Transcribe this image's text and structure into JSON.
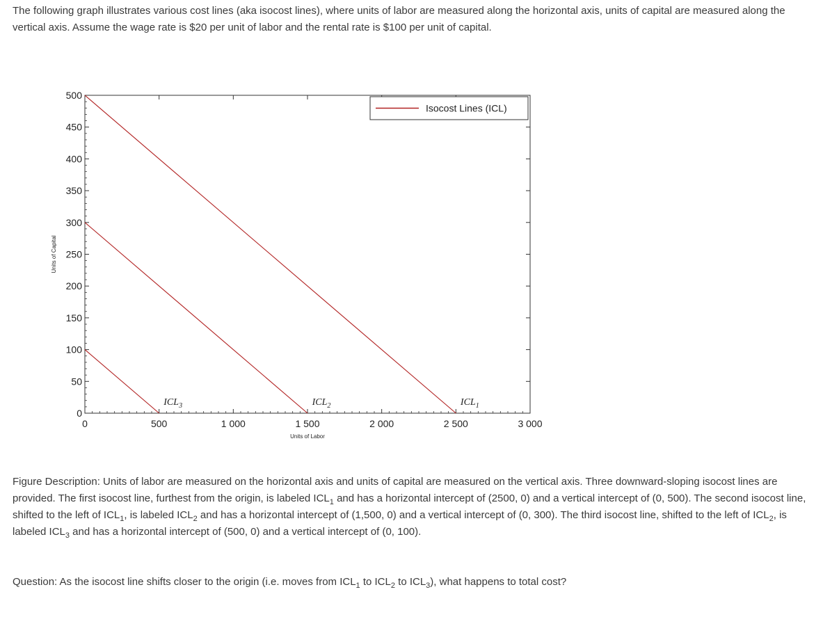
{
  "intro_text": "The following graph illustrates various cost lines (aka isocost lines), where units of labor are measured along the horizontal axis, units of capital are measured along the vertical axis.  Assume the wage rate is $20 per unit of labor and the rental rate is $100 per unit of capital.",
  "colors": {
    "line": "#b22222",
    "axis": "#333333",
    "text": "#3a3a3a"
  },
  "chart_data": {
    "type": "line",
    "xlabel": "Units of Labor",
    "ylabel": "Units of Capital",
    "xlim": [
      0,
      3000
    ],
    "ylim": [
      0,
      500
    ],
    "x_ticks": [
      0,
      500,
      1000,
      1500,
      2000,
      2500,
      3000
    ],
    "x_tick_labels": [
      "0",
      "500",
      "1 000",
      "1 500",
      "2 000",
      "2 500",
      "3 000"
    ],
    "y_ticks": [
      0,
      50,
      100,
      150,
      200,
      250,
      300,
      350,
      400,
      450,
      500
    ],
    "y_tick_labels": [
      "0",
      "50",
      "100",
      "150",
      "200",
      "250",
      "300",
      "350",
      "400",
      "450",
      "500"
    ],
    "grid": false,
    "legend": {
      "placement": "top-right",
      "entries": [
        "Isocost Lines (ICL)"
      ]
    },
    "series": [
      {
        "name": "Isocost Lines (ICL)",
        "points": [
          [
            0,
            500
          ],
          [
            2500,
            0
          ]
        ]
      },
      {
        "name": "Isocost Lines (ICL)",
        "points": [
          [
            0,
            300
          ],
          [
            1500,
            0
          ]
        ]
      },
      {
        "name": "Isocost Lines (ICL)",
        "points": [
          [
            0,
            100
          ],
          [
            500,
            0
          ]
        ]
      }
    ],
    "annotations": [
      {
        "text": "ICL",
        "sub": "1",
        "x": 2500,
        "y": 0
      },
      {
        "text": "ICL",
        "sub": "2",
        "x": 1500,
        "y": 0
      },
      {
        "text": "ICL",
        "sub": "3",
        "x": 500,
        "y": 0
      }
    ]
  },
  "description": {
    "p1": "Figure Description: Units of labor are measured on the horizontal axis and units of capital are measured on the vertical axis. Three downward-sloping isocost lines are provided. The first isocost line, furthest from the origin, is labeled ICL",
    "s1": "1",
    "p2": " and has a horizontal intercept of (2500, 0) and a vertical intercept of (0, 500). The second isocost line, shifted to the left of ICL",
    "s2": "1",
    "p3": ", is labeled ICL",
    "s3": "2",
    "p4": " and has a horizontal intercept of (1,500, 0) and a vertical intercept of (0, 300). The third isocost line, shifted to the left of ICL",
    "s4": "2",
    "p5": ", is labeled ICL",
    "s5": "3",
    "p6": " and has a horizontal intercept of (500, 0) and a vertical intercept of (0, 100)."
  },
  "question": {
    "p1": "Question: As the isocost line shifts closer to the origin (i.e. moves from ICL",
    "s1": "1",
    "p2": " to ICL",
    "s2": "2",
    "p3": " to ICL",
    "s3": "3",
    "p4": "), what happens to total cost?"
  }
}
